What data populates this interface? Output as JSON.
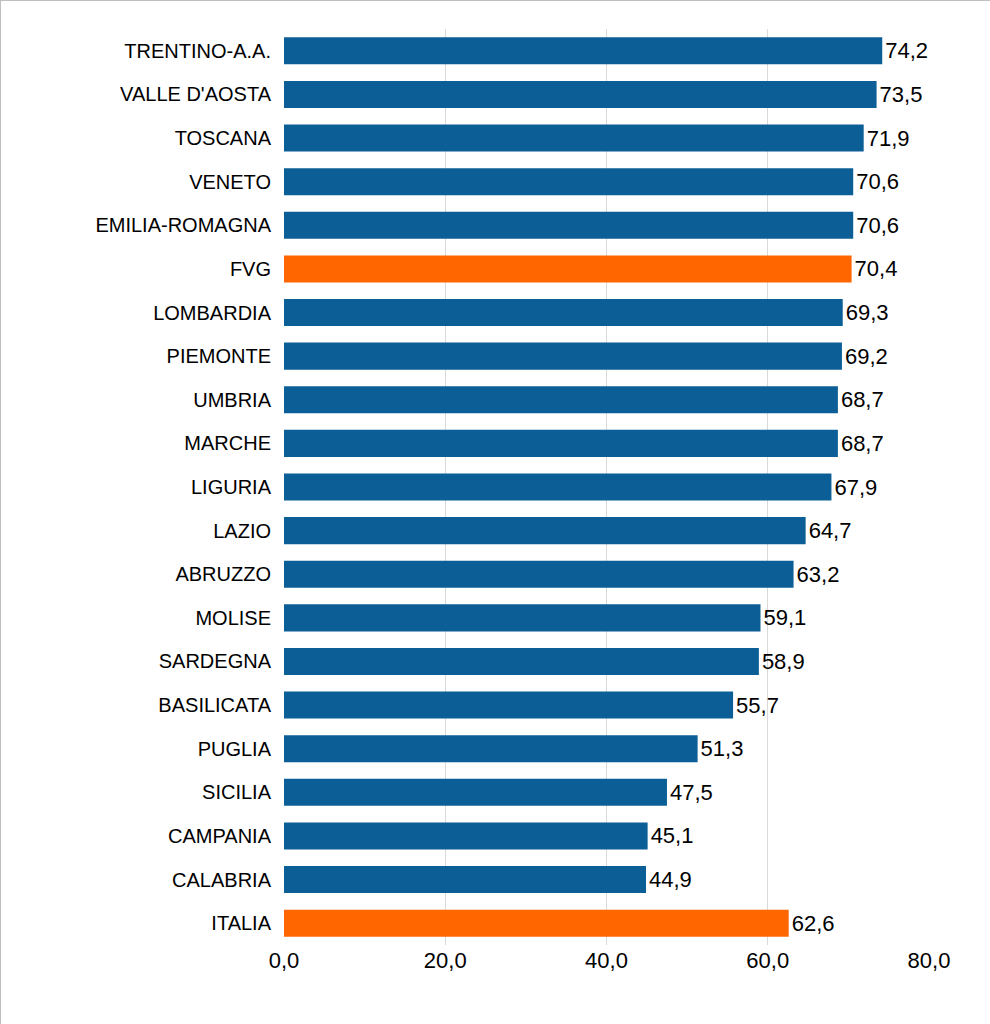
{
  "chart_data": {
    "type": "bar",
    "orientation": "horizontal",
    "categories": [
      "TRENTINO-A.A.",
      "VALLE D'AOSTA",
      "TOSCANA",
      "VENETO",
      "EMILIA-ROMAGNA",
      "FVG",
      "LOMBARDIA",
      "PIEMONTE",
      "UMBRIA",
      "MARCHE",
      "LIGURIA",
      "LAZIO",
      "ABRUZZO",
      "MOLISE",
      "SARDEGNA",
      "BASILICATA",
      "PUGLIA",
      "SICILIA",
      "CAMPANIA",
      "CALABRIA",
      "ITALIA"
    ],
    "values": [
      74.2,
      73.5,
      71.9,
      70.6,
      70.6,
      70.4,
      69.3,
      69.2,
      68.7,
      68.7,
      67.9,
      64.7,
      63.2,
      59.1,
      58.9,
      55.7,
      51.3,
      47.5,
      45.1,
      44.9,
      62.6
    ],
    "value_labels": [
      "74,2",
      "73,5",
      "71,9",
      "70,6",
      "70,6",
      "70,4",
      "69,3",
      "69,2",
      "68,7",
      "68,7",
      "67,9",
      "64,7",
      "63,2",
      "59,1",
      "58,9",
      "55,7",
      "51,3",
      "47,5",
      "45,1",
      "44,9",
      "62,6"
    ],
    "colors": [
      "#0b5f96",
      "#0b5f96",
      "#0b5f96",
      "#0b5f96",
      "#0b5f96",
      "#ff6600",
      "#0b5f96",
      "#0b5f96",
      "#0b5f96",
      "#0b5f96",
      "#0b5f96",
      "#0b5f96",
      "#0b5f96",
      "#0b5f96",
      "#0b5f96",
      "#0b5f96",
      "#0b5f96",
      "#0b5f96",
      "#0b5f96",
      "#0b5f96",
      "#ff6600"
    ],
    "xlim": [
      0,
      80
    ],
    "xticks": [
      {
        "value": 0,
        "label": "0,0"
      },
      {
        "value": 20,
        "label": "20,0"
      },
      {
        "value": 40,
        "label": "40,0"
      },
      {
        "value": 60,
        "label": "60,0"
      },
      {
        "value": 80,
        "label": "80,0"
      }
    ],
    "grid": true,
    "data_labels": true
  }
}
